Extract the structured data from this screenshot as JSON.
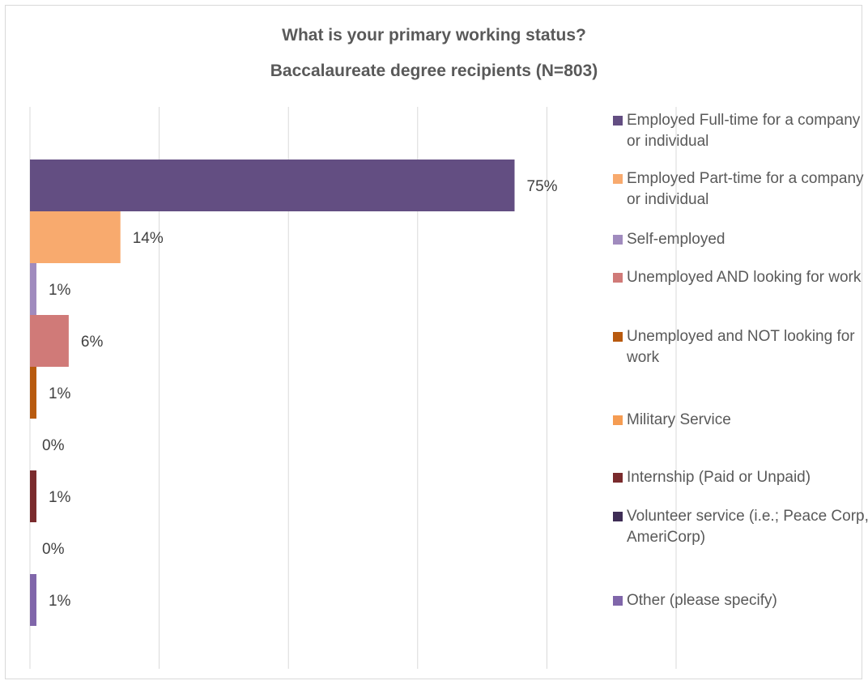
{
  "chart_data": {
    "type": "bar",
    "orientation": "horizontal",
    "title": "What is your primary working status?",
    "subtitle": "Baccalaureate degree recipients (N=803)",
    "xlabel": "",
    "ylabel": "",
    "xlim": [
      0,
      100
    ],
    "grid": true,
    "legend_position": "right",
    "categories": [
      "Employed Full-time for a company or individual",
      "Employed Part-time for a company or individual",
      "Self-employed",
      "Unemployed AND looking for work",
      "Unemployed and NOT looking for work",
      "Military Service",
      "Internship (Paid or Unpaid)",
      "Volunteer service (i.e.; Peace Corp, AmeriCorp)",
      "Other (please specify)"
    ],
    "values": [
      75,
      14,
      1,
      6,
      1,
      0,
      1,
      0,
      1
    ],
    "labels": [
      "75%",
      "14%",
      "1%",
      "6%",
      "1%",
      "0%",
      "1%",
      "0%",
      "1%"
    ],
    "colors": [
      "#634e82",
      "#f8aa6e",
      "#a08bbe",
      "#d07a78",
      "#b85a0f",
      "#f59c52",
      "#7a2b2d",
      "#3e2d55",
      "#8066aa"
    ]
  }
}
